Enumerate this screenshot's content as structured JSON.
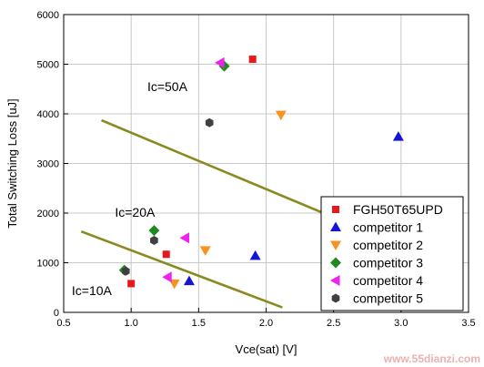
{
  "chart_data": {
    "type": "scatter",
    "xlabel": "Vce(sat) [V]",
    "ylabel": "Total Switching Loss [uJ]",
    "xlim": [
      0.5,
      3.5
    ],
    "ylim": [
      0,
      6000
    ],
    "x_ticks": [
      "0.5",
      "1.0",
      "1.5",
      "2.0",
      "2.5",
      "3.0",
      "3.5"
    ],
    "y_ticks": [
      "0",
      "1000",
      "2000",
      "3000",
      "4000",
      "5000",
      "6000"
    ],
    "grid": true,
    "legend_position": "bottom-right",
    "series": [
      {
        "name": "FGH50T65UPD",
        "marker": "square",
        "color": "#e41a1c",
        "points": [
          [
            1.9,
            5100
          ],
          [
            1.26,
            1170
          ],
          [
            1.0,
            580
          ]
        ]
      },
      {
        "name": "competitor 1",
        "marker": "triangle-up",
        "color": "#1515d8",
        "points": [
          [
            2.98,
            3540
          ],
          [
            1.92,
            1140
          ],
          [
            1.43,
            630
          ]
        ]
      },
      {
        "name": "competitor 2",
        "marker": "triangle-down",
        "color": "#f7931e",
        "points": [
          [
            2.11,
            3980
          ],
          [
            1.55,
            1250
          ],
          [
            1.32,
            580
          ]
        ]
      },
      {
        "name": "competitor 3",
        "marker": "diamond",
        "color": "#1f8a1f",
        "points": [
          [
            1.69,
            4960
          ],
          [
            1.17,
            1650
          ],
          [
            0.95,
            850
          ]
        ]
      },
      {
        "name": "competitor 4",
        "marker": "triangle-left",
        "color": "#ee22ee",
        "points": [
          [
            1.66,
            5030
          ],
          [
            1.4,
            1500
          ],
          [
            1.27,
            710
          ]
        ]
      },
      {
        "name": "competitor 5",
        "marker": "hexagon",
        "color": "#404040",
        "points": [
          [
            1.58,
            3820
          ],
          [
            1.17,
            1450
          ],
          [
            0.96,
            830
          ]
        ]
      }
    ],
    "trend_lines": [
      {
        "color": "#8a8a22",
        "points": [
          [
            0.78,
            3870
          ],
          [
            2.61,
            1790
          ]
        ]
      },
      {
        "color": "#8a8a22",
        "points": [
          [
            0.63,
            1630
          ],
          [
            2.12,
            100
          ]
        ]
      }
    ],
    "annotations": [
      {
        "text": "Ic=50A",
        "x": 1.12,
        "y": 4460
      },
      {
        "text": "Ic=20A",
        "x": 0.88,
        "y": 1930
      },
      {
        "text": "Ic=10A",
        "x": 0.56,
        "y": 350
      }
    ]
  },
  "watermark": "www.55dianzi.com"
}
